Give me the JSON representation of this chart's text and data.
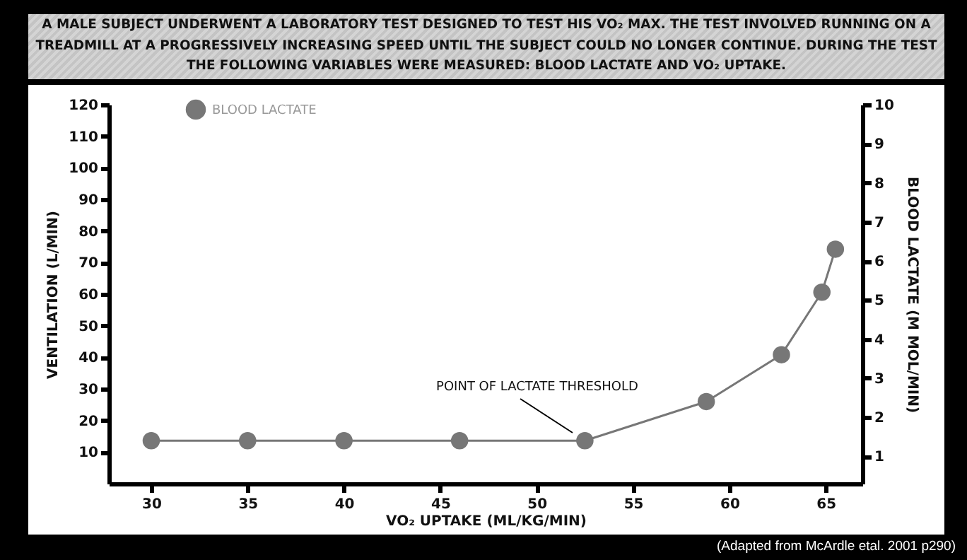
{
  "chart_data": {
    "type": "line",
    "title": "A MALE SUBJECT UNDERWENT A LABORATORY TEST DESIGNED TO TEST HIS VO₂ MAX. THE TEST INVOLVED RUNNING ON A TREADMILL AT A PROGRESSIVELY INCREASING SPEED UNTIL THE SUBJECT COULD NO LONGER CONTINUE. DURING THE TEST THE FOLLOWING VARIABLES WERE MEASURED:  BLOOD LACTATE AND VO₂ UPTAKE.",
    "xlabel": "VO₂ UPTAKE (ML/KG/MIN)",
    "ylabel": "VENTILATION (L/MIN)",
    "y2label": "BLOOD LACTATE (M MOL/MIN)",
    "x": [
      30,
      35,
      40,
      46,
      52.5,
      58.8,
      62.7,
      64.8,
      65.5
    ],
    "series": [
      {
        "name": "BLOOD LACTATE",
        "color": "#777777",
        "axis": "y2",
        "values": [
          1.4,
          1.4,
          1.4,
          1.4,
          1.4,
          2.4,
          3.6,
          5.2,
          6.3
        ]
      }
    ],
    "xlim": [
      27.8,
      66.9
    ],
    "xticks": [
      30,
      35,
      40,
      45,
      50,
      55,
      60,
      65
    ],
    "ylim": [
      0,
      120
    ],
    "yticks": [
      10,
      20,
      30,
      40,
      50,
      60,
      70,
      80,
      90,
      100,
      110,
      120
    ],
    "y2lim": [
      0.3,
      10
    ],
    "y2ticks": [
      1,
      2,
      3,
      4,
      5,
      6,
      7,
      8,
      9,
      10
    ],
    "marker": "circle",
    "legend": "top left",
    "grid": false,
    "annotations": [
      "POINT OF LACTATE THRESHOLD",
      "(Adapted from McArdle etal. 2001 p290)"
    ]
  }
}
